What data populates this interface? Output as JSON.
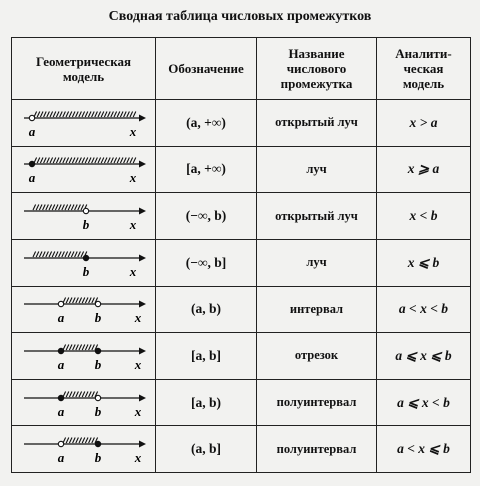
{
  "title": "Сводная таблица числовых промежутков",
  "headers": {
    "geometric": [
      "Геометрическая",
      "модель"
    ],
    "notation": [
      "Обозначение"
    ],
    "name": [
      "Название",
      "числового",
      "промежутка"
    ],
    "analytic": [
      "Аналити-",
      "ческая",
      "модель"
    ]
  },
  "rows": [
    {
      "notation": "(a, +∞)",
      "name": "открытый луч",
      "analytic": "x > a",
      "model": {
        "type": "ray-right",
        "left_point": "open",
        "labels": [
          "a",
          "x"
        ]
      }
    },
    {
      "notation": "[a, +∞)",
      "name": "луч",
      "analytic": "x ⩾ a",
      "model": {
        "type": "ray-right",
        "left_point": "closed",
        "labels": [
          "a",
          "x"
        ]
      }
    },
    {
      "notation": "(−∞, b)",
      "name": "открытый луч",
      "analytic": "x < b",
      "model": {
        "type": "ray-left",
        "right_point": "open",
        "labels": [
          "b",
          "x"
        ]
      }
    },
    {
      "notation": "(−∞, b]",
      "name": "луч",
      "analytic": "x ⩽ b",
      "model": {
        "type": "ray-left",
        "right_point": "closed",
        "labels": [
          "b",
          "x"
        ]
      }
    },
    {
      "notation": "(a, b)",
      "name": "интервал",
      "analytic": "a < x < b",
      "model": {
        "type": "segment",
        "left_point": "open",
        "right_point": "open",
        "labels": [
          "a",
          "b",
          "x"
        ]
      }
    },
    {
      "notation": "[a, b]",
      "name": "отрезок",
      "analytic": "a ⩽ x ⩽ b",
      "model": {
        "type": "segment",
        "left_point": "closed",
        "right_point": "closed",
        "labels": [
          "a",
          "b",
          "x"
        ]
      }
    },
    {
      "notation": "[a, b)",
      "name": "полуинтервал",
      "analytic": "a ⩽ x < b",
      "model": {
        "type": "segment",
        "left_point": "closed",
        "right_point": "open",
        "labels": [
          "a",
          "b",
          "x"
        ]
      }
    },
    {
      "notation": "(a, b]",
      "name": "полуинтервал",
      "analytic": "a < x ⩽ b",
      "model": {
        "type": "segment",
        "left_point": "open",
        "right_point": "closed",
        "labels": [
          "a",
          "b",
          "x"
        ]
      }
    }
  ]
}
